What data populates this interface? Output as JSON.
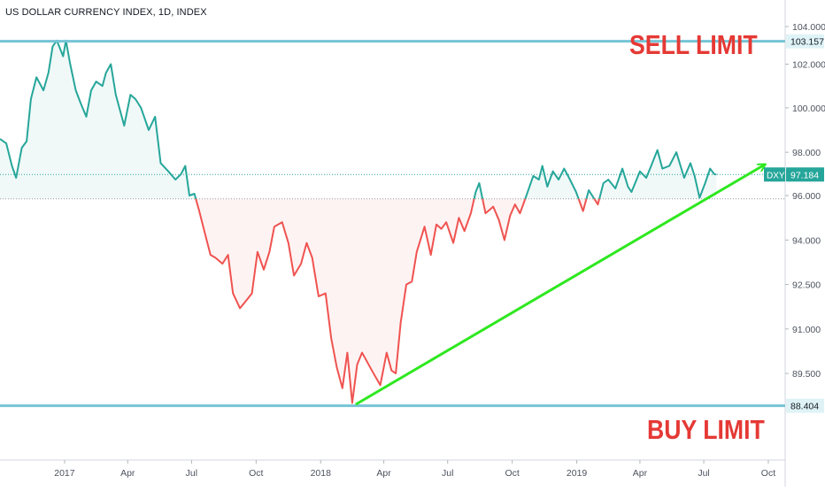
{
  "chart_data": {
    "type": "line",
    "title": "US DOLLAR CURRENCY INDEX, 1D, INDEX",
    "symbol": "DXY",
    "last_value": 97.184,
    "last_value_label": "97.184",
    "baseline_value": 95.85,
    "x_range": [
      "2016-10-01",
      "2019-10-25"
    ],
    "x_tick_labels": [
      {
        "date": "2017-01-01",
        "label": "2017"
      },
      {
        "date": "2017-04-01",
        "label": "Apr"
      },
      {
        "date": "2017-07-01",
        "label": "Jul"
      },
      {
        "date": "2017-10-01",
        "label": "Oct"
      },
      {
        "date": "2018-01-01",
        "label": "2018"
      },
      {
        "date": "2018-04-01",
        "label": "Apr"
      },
      {
        "date": "2018-07-01",
        "label": "Jul"
      },
      {
        "date": "2018-10-01",
        "label": "Oct"
      },
      {
        "date": "2019-01-01",
        "label": "2019"
      },
      {
        "date": "2019-04-01",
        "label": "Apr"
      },
      {
        "date": "2019-07-01",
        "label": "Jul"
      },
      {
        "date": "2019-10-01",
        "label": "Oct"
      }
    ],
    "y_axis": {
      "ticks": [
        {
          "value": 104.0,
          "label": "104.000"
        },
        {
          "value": 102.0,
          "label": "102.000"
        },
        {
          "value": 100.0,
          "label": "100.000"
        },
        {
          "value": 98.0,
          "label": "98.000"
        },
        {
          "value": 96.0,
          "label": "96.000"
        },
        {
          "value": 94.0,
          "label": "94.000"
        },
        {
          "value": 92.5,
          "label": "92.500"
        },
        {
          "value": 91.0,
          "label": "91.000"
        },
        {
          "value": 89.5,
          "label": "89.500"
        }
      ],
      "anchors": [
        {
          "value": 104.0,
          "rel": 0.0
        },
        {
          "value": 103.157,
          "rel": 0.0365
        },
        {
          "value": 102.0,
          "rel": 0.093
        },
        {
          "value": 100.0,
          "rel": 0.201
        },
        {
          "value": 98.0,
          "rel": 0.311
        },
        {
          "value": 97.184,
          "rel": 0.366
        },
        {
          "value": 96.0,
          "rel": 0.418
        },
        {
          "value": 94.0,
          "rel": 0.528
        },
        {
          "value": 92.5,
          "rel": 0.638
        },
        {
          "value": 91.0,
          "rel": 0.748
        },
        {
          "value": 89.5,
          "rel": 0.858
        },
        {
          "value": 88.404,
          "rel": 0.938
        }
      ]
    },
    "series": [
      {
        "values": [
          [
            "2016-10-01",
            98.6
          ],
          [
            "2016-10-10",
            98.4
          ],
          [
            "2016-10-18",
            97.5
          ],
          [
            "2016-10-24",
            97.0
          ],
          [
            "2016-11-01",
            98.2
          ],
          [
            "2016-11-08",
            98.5
          ],
          [
            "2016-11-14",
            100.4
          ],
          [
            "2016-11-22",
            101.4
          ],
          [
            "2016-12-02",
            100.8
          ],
          [
            "2016-12-09",
            101.6
          ],
          [
            "2016-12-15",
            102.9
          ],
          [
            "2016-12-21",
            103.2
          ],
          [
            "2016-12-30",
            102.4
          ],
          [
            "2017-01-03",
            103.2
          ],
          [
            "2017-01-09",
            102.0
          ],
          [
            "2017-01-17",
            100.8
          ],
          [
            "2017-01-24",
            100.2
          ],
          [
            "2017-02-01",
            99.6
          ],
          [
            "2017-02-08",
            100.8
          ],
          [
            "2017-02-15",
            101.2
          ],
          [
            "2017-02-24",
            101.0
          ],
          [
            "2017-03-01",
            101.6
          ],
          [
            "2017-03-08",
            102.0
          ],
          [
            "2017-03-15",
            100.6
          ],
          [
            "2017-03-27",
            99.2
          ],
          [
            "2017-04-05",
            100.6
          ],
          [
            "2017-04-12",
            100.4
          ],
          [
            "2017-04-20",
            100.0
          ],
          [
            "2017-05-01",
            99.0
          ],
          [
            "2017-05-10",
            99.6
          ],
          [
            "2017-05-18",
            97.6
          ],
          [
            "2017-05-29",
            97.3
          ],
          [
            "2017-06-08",
            96.9
          ],
          [
            "2017-06-16",
            97.2
          ],
          [
            "2017-06-22",
            97.5
          ],
          [
            "2017-06-28",
            96.0
          ],
          [
            "2017-07-05",
            96.1
          ],
          [
            "2017-07-12",
            95.3
          ],
          [
            "2017-07-20",
            94.3
          ],
          [
            "2017-07-28",
            93.5
          ],
          [
            "2017-08-04",
            93.4
          ],
          [
            "2017-08-14",
            93.2
          ],
          [
            "2017-08-22",
            93.5
          ],
          [
            "2017-08-29",
            92.2
          ],
          [
            "2017-09-08",
            91.7
          ],
          [
            "2017-09-15",
            91.9
          ],
          [
            "2017-09-25",
            92.2
          ],
          [
            "2017-10-03",
            93.6
          ],
          [
            "2017-10-12",
            93.0
          ],
          [
            "2017-10-20",
            93.6
          ],
          [
            "2017-10-27",
            94.6
          ],
          [
            "2017-11-07",
            94.8
          ],
          [
            "2017-11-16",
            93.9
          ],
          [
            "2017-11-24",
            92.8
          ],
          [
            "2017-12-04",
            93.2
          ],
          [
            "2017-12-12",
            93.9
          ],
          [
            "2017-12-20",
            93.4
          ],
          [
            "2017-12-29",
            92.1
          ],
          [
            "2018-01-08",
            92.2
          ],
          [
            "2018-01-16",
            90.7
          ],
          [
            "2018-01-24",
            89.7
          ],
          [
            "2018-02-01",
            89.0
          ],
          [
            "2018-02-08",
            90.2
          ],
          [
            "2018-02-15",
            88.5
          ],
          [
            "2018-02-22",
            89.8
          ],
          [
            "2018-03-01",
            90.2
          ],
          [
            "2018-03-08",
            89.9
          ],
          [
            "2018-03-15",
            89.6
          ],
          [
            "2018-03-27",
            89.1
          ],
          [
            "2018-04-05",
            90.2
          ],
          [
            "2018-04-12",
            89.6
          ],
          [
            "2018-04-18",
            89.5
          ],
          [
            "2018-04-25",
            91.2
          ],
          [
            "2018-05-03",
            92.5
          ],
          [
            "2018-05-11",
            92.6
          ],
          [
            "2018-05-18",
            93.6
          ],
          [
            "2018-05-29",
            94.6
          ],
          [
            "2018-06-07",
            93.5
          ],
          [
            "2018-06-15",
            94.7
          ],
          [
            "2018-06-22",
            94.5
          ],
          [
            "2018-06-29",
            94.8
          ],
          [
            "2018-07-09",
            93.9
          ],
          [
            "2018-07-17",
            95.0
          ],
          [
            "2018-07-25",
            94.4
          ],
          [
            "2018-08-03",
            95.2
          ],
          [
            "2018-08-10",
            96.2
          ],
          [
            "2018-08-15",
            96.7
          ],
          [
            "2018-08-24",
            95.2
          ],
          [
            "2018-09-04",
            95.5
          ],
          [
            "2018-09-12",
            94.9
          ],
          [
            "2018-09-20",
            94.0
          ],
          [
            "2018-09-28",
            95.1
          ],
          [
            "2018-10-05",
            95.6
          ],
          [
            "2018-10-12",
            95.2
          ],
          [
            "2018-10-19",
            95.8
          ],
          [
            "2018-10-31",
            97.1
          ],
          [
            "2018-11-08",
            96.9
          ],
          [
            "2018-11-13",
            97.5
          ],
          [
            "2018-11-20",
            96.5
          ],
          [
            "2018-11-28",
            97.3
          ],
          [
            "2018-12-06",
            96.9
          ],
          [
            "2018-12-14",
            97.4
          ],
          [
            "2018-12-21",
            97.0
          ],
          [
            "2018-12-31",
            96.2
          ],
          [
            "2019-01-10",
            95.3
          ],
          [
            "2019-01-18",
            96.3
          ],
          [
            "2019-01-31",
            95.6
          ],
          [
            "2019-02-08",
            96.7
          ],
          [
            "2019-02-15",
            96.9
          ],
          [
            "2019-02-25",
            96.4
          ],
          [
            "2019-03-07",
            97.4
          ],
          [
            "2019-03-15",
            96.5
          ],
          [
            "2019-03-20",
            96.2
          ],
          [
            "2019-04-01",
            97.3
          ],
          [
            "2019-04-10",
            97.0
          ],
          [
            "2019-04-17",
            97.5
          ],
          [
            "2019-04-26",
            98.1
          ],
          [
            "2019-05-03",
            97.4
          ],
          [
            "2019-05-13",
            97.5
          ],
          [
            "2019-05-23",
            98.0
          ],
          [
            "2019-06-03",
            97.0
          ],
          [
            "2019-06-12",
            97.6
          ],
          [
            "2019-06-18",
            97.1
          ],
          [
            "2019-06-25",
            95.9
          ],
          [
            "2019-07-03",
            96.7
          ],
          [
            "2019-07-10",
            97.4
          ],
          [
            "2019-07-16",
            97.2
          ],
          [
            "2019-07-19",
            97.18
          ]
        ]
      }
    ],
    "annotations": {
      "sell_limit": {
        "text": "SELL LIMIT",
        "value": 103.157,
        "label": "103.157",
        "color": "#e53935"
      },
      "buy_limit": {
        "text": "BUY LIMIT",
        "value": 88.404,
        "label": "88.404",
        "color": "#e53935"
      },
      "trendline": {
        "from": [
          "2018-02-20",
          88.45
        ],
        "to": [
          "2019-09-26",
          97.55
        ],
        "color": "#2ee81f"
      }
    },
    "colors": {
      "above_baseline": "#26a69a",
      "below_baseline": "#ef5350",
      "horizontal_line": "#75c4d6",
      "last_value_tag": "#26a69a",
      "axis_text": "#4c525e"
    }
  }
}
